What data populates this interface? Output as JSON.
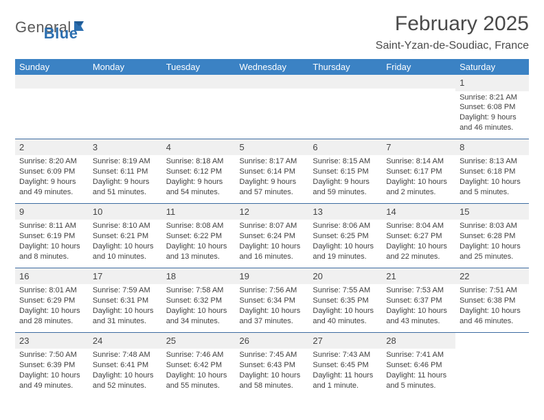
{
  "brand": {
    "name1": "General",
    "name2": "Blue"
  },
  "title": "February 2025",
  "location": "Saint-Yzan-de-Soudiac, France",
  "colors": {
    "header_bg": "#3b82c4",
    "header_text": "#ffffff",
    "border": "#3b6aa0",
    "grey_bg": "#f0f0f0",
    "text": "#3f3f3f",
    "brand_grey": "#5a5a5a",
    "brand_blue": "#2c6fb0"
  },
  "fonts": {
    "title_size": 30,
    "location_size": 16,
    "header_size": 13,
    "body_size": 11
  },
  "day_headers": [
    "Sunday",
    "Monday",
    "Tuesday",
    "Wednesday",
    "Thursday",
    "Friday",
    "Saturday"
  ],
  "weeks": [
    [
      null,
      null,
      null,
      null,
      null,
      null,
      {
        "n": "1",
        "sunrise": "Sunrise: 8:21 AM",
        "sunset": "Sunset: 6:08 PM",
        "daylight": "Daylight: 9 hours and 46 minutes."
      }
    ],
    [
      {
        "n": "2",
        "sunrise": "Sunrise: 8:20 AM",
        "sunset": "Sunset: 6:09 PM",
        "daylight": "Daylight: 9 hours and 49 minutes."
      },
      {
        "n": "3",
        "sunrise": "Sunrise: 8:19 AM",
        "sunset": "Sunset: 6:11 PM",
        "daylight": "Daylight: 9 hours and 51 minutes."
      },
      {
        "n": "4",
        "sunrise": "Sunrise: 8:18 AM",
        "sunset": "Sunset: 6:12 PM",
        "daylight": "Daylight: 9 hours and 54 minutes."
      },
      {
        "n": "5",
        "sunrise": "Sunrise: 8:17 AM",
        "sunset": "Sunset: 6:14 PM",
        "daylight": "Daylight: 9 hours and 57 minutes."
      },
      {
        "n": "6",
        "sunrise": "Sunrise: 8:15 AM",
        "sunset": "Sunset: 6:15 PM",
        "daylight": "Daylight: 9 hours and 59 minutes."
      },
      {
        "n": "7",
        "sunrise": "Sunrise: 8:14 AM",
        "sunset": "Sunset: 6:17 PM",
        "daylight": "Daylight: 10 hours and 2 minutes."
      },
      {
        "n": "8",
        "sunrise": "Sunrise: 8:13 AM",
        "sunset": "Sunset: 6:18 PM",
        "daylight": "Daylight: 10 hours and 5 minutes."
      }
    ],
    [
      {
        "n": "9",
        "sunrise": "Sunrise: 8:11 AM",
        "sunset": "Sunset: 6:19 PM",
        "daylight": "Daylight: 10 hours and 8 minutes."
      },
      {
        "n": "10",
        "sunrise": "Sunrise: 8:10 AM",
        "sunset": "Sunset: 6:21 PM",
        "daylight": "Daylight: 10 hours and 10 minutes."
      },
      {
        "n": "11",
        "sunrise": "Sunrise: 8:08 AM",
        "sunset": "Sunset: 6:22 PM",
        "daylight": "Daylight: 10 hours and 13 minutes."
      },
      {
        "n": "12",
        "sunrise": "Sunrise: 8:07 AM",
        "sunset": "Sunset: 6:24 PM",
        "daylight": "Daylight: 10 hours and 16 minutes."
      },
      {
        "n": "13",
        "sunrise": "Sunrise: 8:06 AM",
        "sunset": "Sunset: 6:25 PM",
        "daylight": "Daylight: 10 hours and 19 minutes."
      },
      {
        "n": "14",
        "sunrise": "Sunrise: 8:04 AM",
        "sunset": "Sunset: 6:27 PM",
        "daylight": "Daylight: 10 hours and 22 minutes."
      },
      {
        "n": "15",
        "sunrise": "Sunrise: 8:03 AM",
        "sunset": "Sunset: 6:28 PM",
        "daylight": "Daylight: 10 hours and 25 minutes."
      }
    ],
    [
      {
        "n": "16",
        "sunrise": "Sunrise: 8:01 AM",
        "sunset": "Sunset: 6:29 PM",
        "daylight": "Daylight: 10 hours and 28 minutes."
      },
      {
        "n": "17",
        "sunrise": "Sunrise: 7:59 AM",
        "sunset": "Sunset: 6:31 PM",
        "daylight": "Daylight: 10 hours and 31 minutes."
      },
      {
        "n": "18",
        "sunrise": "Sunrise: 7:58 AM",
        "sunset": "Sunset: 6:32 PM",
        "daylight": "Daylight: 10 hours and 34 minutes."
      },
      {
        "n": "19",
        "sunrise": "Sunrise: 7:56 AM",
        "sunset": "Sunset: 6:34 PM",
        "daylight": "Daylight: 10 hours and 37 minutes."
      },
      {
        "n": "20",
        "sunrise": "Sunrise: 7:55 AM",
        "sunset": "Sunset: 6:35 PM",
        "daylight": "Daylight: 10 hours and 40 minutes."
      },
      {
        "n": "21",
        "sunrise": "Sunrise: 7:53 AM",
        "sunset": "Sunset: 6:37 PM",
        "daylight": "Daylight: 10 hours and 43 minutes."
      },
      {
        "n": "22",
        "sunrise": "Sunrise: 7:51 AM",
        "sunset": "Sunset: 6:38 PM",
        "daylight": "Daylight: 10 hours and 46 minutes."
      }
    ],
    [
      {
        "n": "23",
        "sunrise": "Sunrise: 7:50 AM",
        "sunset": "Sunset: 6:39 PM",
        "daylight": "Daylight: 10 hours and 49 minutes."
      },
      {
        "n": "24",
        "sunrise": "Sunrise: 7:48 AM",
        "sunset": "Sunset: 6:41 PM",
        "daylight": "Daylight: 10 hours and 52 minutes."
      },
      {
        "n": "25",
        "sunrise": "Sunrise: 7:46 AM",
        "sunset": "Sunset: 6:42 PM",
        "daylight": "Daylight: 10 hours and 55 minutes."
      },
      {
        "n": "26",
        "sunrise": "Sunrise: 7:45 AM",
        "sunset": "Sunset: 6:43 PM",
        "daylight": "Daylight: 10 hours and 58 minutes."
      },
      {
        "n": "27",
        "sunrise": "Sunrise: 7:43 AM",
        "sunset": "Sunset: 6:45 PM",
        "daylight": "Daylight: 11 hours and 1 minute."
      },
      {
        "n": "28",
        "sunrise": "Sunrise: 7:41 AM",
        "sunset": "Sunset: 6:46 PM",
        "daylight": "Daylight: 11 hours and 5 minutes."
      },
      null
    ]
  ]
}
